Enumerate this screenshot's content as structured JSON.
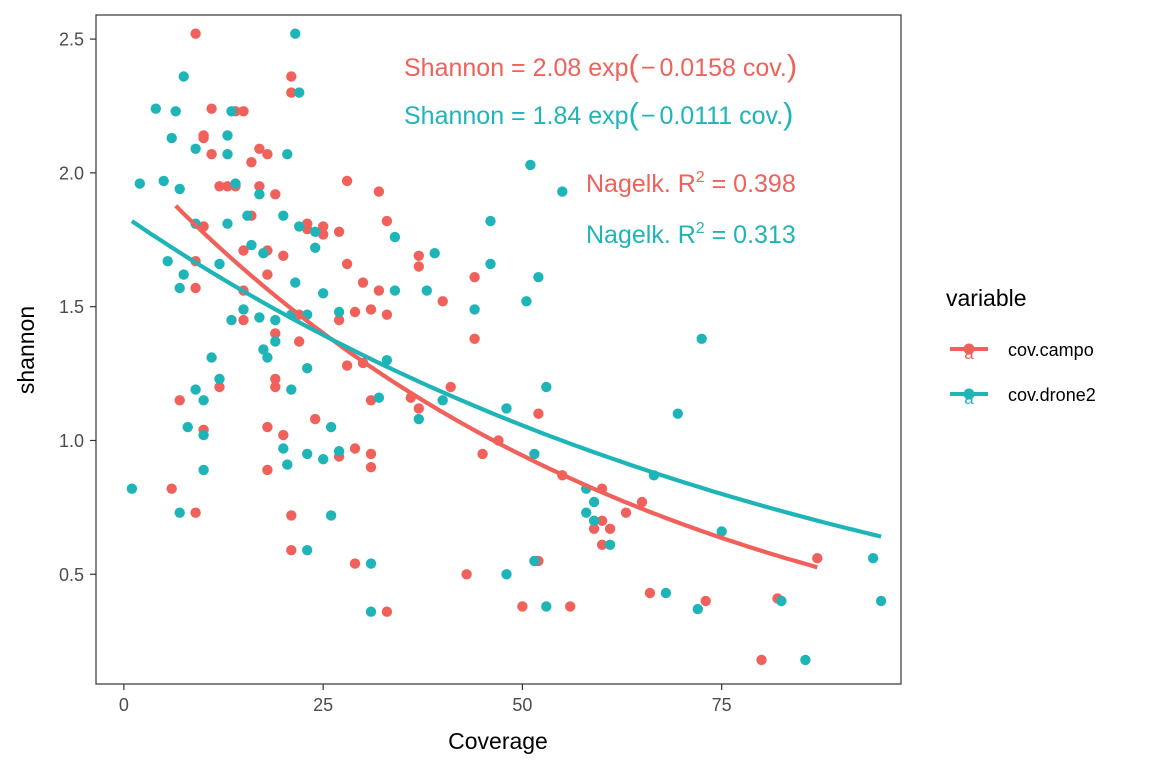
{
  "chart_data": {
    "type": "scatter",
    "xlabel": "Coverage",
    "ylabel": "shannon",
    "xlim": [
      -3.5,
      97.5
    ],
    "ylim": [
      0.09,
      2.59
    ],
    "xticks": [
      0,
      25,
      50,
      75
    ],
    "yticks": [
      0.5,
      1.0,
      1.5,
      2.0,
      2.5
    ],
    "xtick_labels": [
      "0",
      "25",
      "50",
      "75"
    ],
    "ytick_labels": [
      "0.5",
      "1.0",
      "1.5",
      "2.0",
      "2.5"
    ],
    "grid": false,
    "legend": {
      "title": "variable",
      "position": "right",
      "key_glyph": "a"
    },
    "annotations": [
      {
        "id": "eq-campo",
        "prefix": "Shannon = 2.08 exp",
        "paren_open": "(",
        "minus": "−",
        "body": "0.0158 cov.",
        "paren_close": ")",
        "series": "cov.campo"
      },
      {
        "id": "eq-drone2",
        "prefix": "Shannon = 1.84 exp",
        "paren_open": "(",
        "minus": "−",
        "body": "0.0111 cov.",
        "paren_close": ")",
        "series": "cov.drone2"
      },
      {
        "id": "r2-campo",
        "prefix": "Nagelk. R",
        "sup": "2",
        "suffix": " = 0.398",
        "series": "cov.campo"
      },
      {
        "id": "r2-drone2",
        "prefix": "Nagelk. R",
        "sup": "2",
        "suffix": " = 0.313",
        "series": "cov.drone2"
      }
    ],
    "series": [
      {
        "name": "cov.campo",
        "color": "#F0615B",
        "fit": {
          "a": 2.08,
          "b": -0.0158,
          "x_from": 6.5,
          "x_to": 87
        },
        "points": [
          [
            9,
            2.52
          ],
          [
            6,
            0.82
          ],
          [
            7,
            1.15
          ],
          [
            9,
            1.57
          ],
          [
            9,
            1.67
          ],
          [
            9,
            0.73
          ],
          [
            10,
            2.14
          ],
          [
            10,
            2.13
          ],
          [
            10,
            1.04
          ],
          [
            10,
            1.8
          ],
          [
            11,
            2.24
          ],
          [
            11,
            2.07
          ],
          [
            12,
            1.95
          ],
          [
            12,
            1.2
          ],
          [
            13,
            1.95
          ],
          [
            14,
            2.23
          ],
          [
            14,
            1.95
          ],
          [
            15,
            2.23
          ],
          [
            15,
            1.71
          ],
          [
            15,
            1.56
          ],
          [
            15,
            1.45
          ],
          [
            16,
            2.04
          ],
          [
            16,
            1.84
          ],
          [
            17,
            2.09
          ],
          [
            17,
            1.95
          ],
          [
            18,
            2.07
          ],
          [
            18,
            1.71
          ],
          [
            18,
            1.62
          ],
          [
            18,
            1.05
          ],
          [
            18,
            0.89
          ],
          [
            19,
            1.92
          ],
          [
            19,
            1.4
          ],
          [
            19,
            1.23
          ],
          [
            19,
            1.2
          ],
          [
            20,
            1.69
          ],
          [
            20,
            1.02
          ],
          [
            21,
            2.36
          ],
          [
            21,
            2.3
          ],
          [
            21,
            0.72
          ],
          [
            21,
            0.59
          ],
          [
            22,
            1.37
          ],
          [
            22,
            1.47
          ],
          [
            23,
            1.79
          ],
          [
            23,
            1.81
          ],
          [
            24,
            1.08
          ],
          [
            25,
            1.8
          ],
          [
            25,
            1.77
          ],
          [
            27,
            1.78
          ],
          [
            27,
            1.45
          ],
          [
            27,
            0.94
          ],
          [
            28,
            1.97
          ],
          [
            28,
            1.66
          ],
          [
            28,
            1.28
          ],
          [
            29,
            1.48
          ],
          [
            29,
            0.97
          ],
          [
            29,
            0.54
          ],
          [
            30,
            1.59
          ],
          [
            30,
            1.29
          ],
          [
            31,
            1.49
          ],
          [
            31,
            1.15
          ],
          [
            31,
            0.95
          ],
          [
            31,
            0.9
          ],
          [
            32,
            1.93
          ],
          [
            32,
            1.56
          ],
          [
            33,
            1.82
          ],
          [
            33,
            1.47
          ],
          [
            33,
            0.36
          ],
          [
            36,
            1.16
          ],
          [
            37,
            1.69
          ],
          [
            37,
            1.65
          ],
          [
            37,
            1.12
          ],
          [
            40,
            1.52
          ],
          [
            41,
            1.2
          ],
          [
            43,
            0.5
          ],
          [
            44,
            1.61
          ],
          [
            44,
            1.38
          ],
          [
            45,
            0.95
          ],
          [
            47,
            1.0
          ],
          [
            50,
            0.38
          ],
          [
            52,
            1.1
          ],
          [
            52,
            0.55
          ],
          [
            55,
            0.87
          ],
          [
            56,
            0.38
          ],
          [
            59,
            0.67
          ],
          [
            60,
            0.82
          ],
          [
            60,
            0.7
          ],
          [
            60,
            0.61
          ],
          [
            61,
            0.67
          ],
          [
            63,
            0.73
          ],
          [
            65,
            0.77
          ],
          [
            66,
            0.43
          ],
          [
            73,
            0.4
          ],
          [
            80,
            0.18
          ],
          [
            82,
            0.41
          ],
          [
            87,
            0.56
          ]
        ]
      },
      {
        "name": "cov.drone2",
        "color": "#1FB5B8",
        "fit": {
          "a": 1.84,
          "b": -0.0111,
          "x_from": 1,
          "x_to": 95
        },
        "points": [
          [
            1,
            0.82
          ],
          [
            2,
            1.96
          ],
          [
            4,
            2.24
          ],
          [
            5,
            1.97
          ],
          [
            5.5,
            1.67
          ],
          [
            6,
            2.13
          ],
          [
            6.5,
            2.23
          ],
          [
            7,
            1.94
          ],
          [
            7,
            1.57
          ],
          [
            7,
            0.73
          ],
          [
            7.5,
            2.36
          ],
          [
            7.5,
            1.62
          ],
          [
            8,
            1.05
          ],
          [
            9,
            1.19
          ],
          [
            9,
            2.09
          ],
          [
            9,
            1.81
          ],
          [
            10,
            1.15
          ],
          [
            10,
            1.02
          ],
          [
            10,
            0.89
          ],
          [
            11,
            1.31
          ],
          [
            12,
            1.66
          ],
          [
            12,
            1.23
          ],
          [
            13,
            2.07
          ],
          [
            13,
            2.14
          ],
          [
            13,
            1.81
          ],
          [
            13.5,
            1.45
          ],
          [
            13.5,
            2.23
          ],
          [
            14,
            1.96
          ],
          [
            15,
            1.49
          ],
          [
            15.5,
            1.84
          ],
          [
            16,
            1.73
          ],
          [
            17,
            1.46
          ],
          [
            17,
            1.92
          ],
          [
            17.5,
            1.7
          ],
          [
            17.5,
            1.34
          ],
          [
            18,
            1.31
          ],
          [
            19,
            1.37
          ],
          [
            19,
            1.45
          ],
          [
            20,
            1.84
          ],
          [
            20,
            0.97
          ],
          [
            20.5,
            2.07
          ],
          [
            20.5,
            0.91
          ],
          [
            21,
            1.19
          ],
          [
            21,
            1.47
          ],
          [
            21.5,
            2.52
          ],
          [
            21.5,
            1.59
          ],
          [
            22,
            2.3
          ],
          [
            22,
            1.8
          ],
          [
            23,
            1.47
          ],
          [
            23,
            1.27
          ],
          [
            23,
            0.95
          ],
          [
            23,
            0.59
          ],
          [
            24,
            1.78
          ],
          [
            24,
            1.72
          ],
          [
            25,
            1.55
          ],
          [
            25,
            0.93
          ],
          [
            26,
            1.05
          ],
          [
            26,
            0.72
          ],
          [
            27,
            1.48
          ],
          [
            27,
            0.96
          ],
          [
            31,
            0.54
          ],
          [
            31,
            0.36
          ],
          [
            32,
            1.16
          ],
          [
            33,
            1.3
          ],
          [
            34,
            1.76
          ],
          [
            34,
            1.56
          ],
          [
            37,
            1.08
          ],
          [
            38,
            1.56
          ],
          [
            39,
            1.7
          ],
          [
            40,
            1.15
          ],
          [
            44,
            1.49
          ],
          [
            46,
            1.82
          ],
          [
            46,
            1.66
          ],
          [
            48,
            1.12
          ],
          [
            48,
            0.5
          ],
          [
            50.5,
            1.52
          ],
          [
            51,
            2.03
          ],
          [
            51.5,
            0.95
          ],
          [
            51.5,
            0.55
          ],
          [
            52,
            1.61
          ],
          [
            53,
            0.38
          ],
          [
            53,
            1.2
          ],
          [
            55,
            1.93
          ],
          [
            58,
            0.82
          ],
          [
            58,
            0.73
          ],
          [
            59,
            0.77
          ],
          [
            59,
            0.7
          ],
          [
            61,
            0.61
          ],
          [
            66.5,
            0.87
          ],
          [
            68,
            0.43
          ],
          [
            69.5,
            1.1
          ],
          [
            72.5,
            1.38
          ],
          [
            72,
            0.37
          ],
          [
            75,
            0.66
          ],
          [
            82.5,
            0.4
          ],
          [
            85.5,
            0.18
          ],
          [
            94,
            0.56
          ],
          [
            95,
            0.4
          ]
        ]
      }
    ]
  }
}
